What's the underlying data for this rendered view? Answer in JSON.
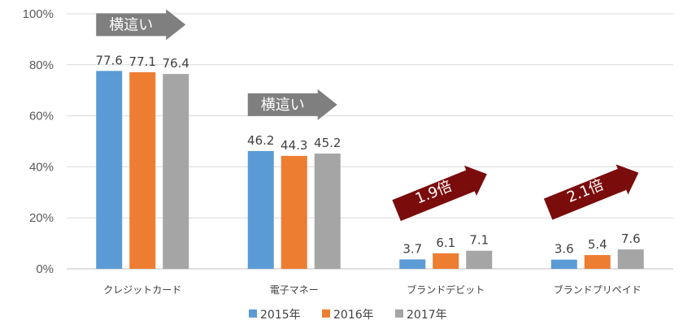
{
  "chart_data": {
    "type": "bar",
    "categories": [
      "クレジットカード",
      "電子マネー",
      "ブランドデビット",
      "ブランドプリペイド"
    ],
    "series": [
      {
        "name": "2015年",
        "values": [
          77.6,
          46.2,
          3.7,
          3.6
        ],
        "color": "#5b9bd5"
      },
      {
        "name": "2016年",
        "values": [
          77.1,
          44.3,
          6.1,
          5.4
        ],
        "color": "#ed7d31"
      },
      {
        "name": "2017年",
        "values": [
          76.4,
          45.2,
          7.1,
          7.6
        ],
        "color": "#a5a5a5"
      }
    ],
    "yticks": [
      "0%",
      "20%",
      "40%",
      "60%",
      "80%",
      "100%"
    ],
    "ylim": [
      0,
      100
    ],
    "grid": true,
    "legend": "bottom",
    "annotations": [
      {
        "category_index": 0,
        "text": "横這い",
        "style": "flat",
        "color": "#7f7f7f"
      },
      {
        "category_index": 1,
        "text": "横這い",
        "style": "flat",
        "color": "#7f7f7f"
      },
      {
        "category_index": 2,
        "text": "1.9倍",
        "style": "rising",
        "color": "#7b0c0c"
      },
      {
        "category_index": 3,
        "text": "2.1倍",
        "style": "rising",
        "color": "#7b0c0c"
      }
    ]
  }
}
